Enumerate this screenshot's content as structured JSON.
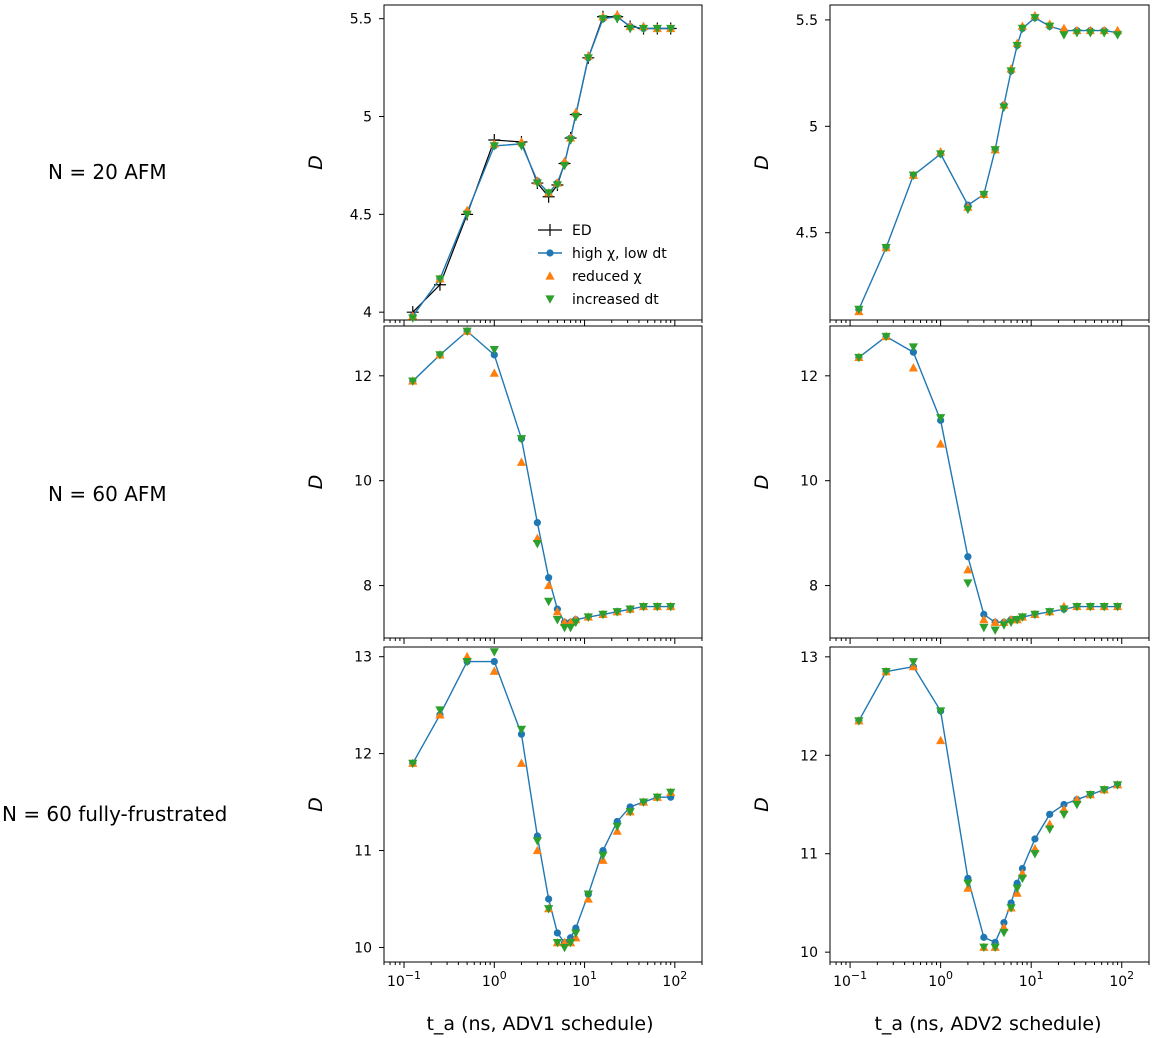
{
  "figure": {
    "row_labels": [
      "N = 20 AFM",
      "N = 60 AFM",
      "N = 60 fully-frustrated"
    ],
    "y_axis_label": "D",
    "column_xlabels": [
      "t_a (ns, ADV1 schedule)",
      "t_a (ns, ADV2 schedule)"
    ],
    "x_tick_labels": [
      "10^-1",
      "10^0",
      "10^1",
      "10^2"
    ]
  },
  "legend": {
    "placement": "lower-right of top-left panel",
    "entries": [
      {
        "key": "ed",
        "label": "ED"
      },
      {
        "key": "high",
        "label": "high χ, low dt"
      },
      {
        "key": "reduced",
        "label": "reduced χ"
      },
      {
        "key": "increased",
        "label": "increased dt"
      }
    ]
  },
  "colors": {
    "ed": "#000000",
    "high": "#1f77b4",
    "reduced": "#ff7f0e",
    "increased": "#2ca02c"
  },
  "chart_data": [
    {
      "type": "line",
      "panel": "row1-col1",
      "xlabel": "",
      "ylabel": "D",
      "xscale": "log",
      "xlim": [
        0.06,
        200
      ],
      "ylim": [
        3.96,
        5.57
      ],
      "yticks": [
        4,
        4.5,
        5,
        5.5
      ],
      "x": [
        0.125,
        0.25,
        0.5,
        1,
        2,
        3,
        4,
        5,
        6,
        7,
        8,
        11,
        16,
        23,
        32,
        45,
        64,
        90
      ],
      "series": [
        {
          "name": "ED",
          "key": "ed",
          "values": [
            4.0,
            4.14,
            4.5,
            4.88,
            4.87,
            4.66,
            4.59,
            4.65,
            4.76,
            4.89,
            5.01,
            5.3,
            5.51,
            5.51,
            5.46,
            5.45,
            5.45,
            5.45
          ]
        },
        {
          "name": "high χ, low dt",
          "key": "high",
          "values": [
            3.98,
            4.17,
            4.51,
            4.85,
            4.86,
            4.67,
            4.61,
            4.66,
            4.76,
            4.89,
            5.01,
            5.3,
            5.5,
            5.51,
            5.46,
            5.45,
            5.45,
            5.45
          ]
        },
        {
          "name": "reduced χ",
          "key": "reduced",
          "values": [
            3.98,
            4.17,
            4.52,
            4.86,
            4.87,
            4.67,
            4.61,
            4.66,
            4.77,
            4.89,
            5.02,
            5.31,
            5.51,
            5.52,
            5.46,
            5.46,
            5.45,
            5.45
          ]
        },
        {
          "name": "increased dt",
          "key": "increased",
          "values": [
            3.97,
            4.17,
            4.5,
            4.85,
            4.85,
            4.66,
            4.61,
            4.65,
            4.75,
            4.88,
            5.0,
            5.3,
            5.5,
            5.5,
            5.45,
            5.45,
            5.45,
            5.45
          ]
        }
      ]
    },
    {
      "type": "line",
      "panel": "row1-col2",
      "xlabel": "",
      "ylabel": "D",
      "xscale": "log",
      "xlim": [
        0.06,
        200
      ],
      "ylim": [
        4.09,
        5.57
      ],
      "yticks": [
        4.5,
        5,
        5.5
      ],
      "x": [
        0.125,
        0.25,
        0.5,
        1,
        2,
        3,
        4,
        5,
        6,
        7,
        8,
        11,
        16,
        23,
        32,
        45,
        64,
        90
      ],
      "series": [
        {
          "name": "high χ, low dt",
          "key": "high",
          "values": [
            4.14,
            4.43,
            4.77,
            4.87,
            4.63,
            4.68,
            4.89,
            5.1,
            5.26,
            5.38,
            5.46,
            5.51,
            5.47,
            5.45,
            5.45,
            5.45,
            5.45,
            5.44
          ]
        },
        {
          "name": "reduced χ",
          "key": "reduced",
          "values": [
            4.13,
            4.43,
            4.77,
            4.88,
            4.62,
            4.68,
            4.89,
            5.1,
            5.27,
            5.39,
            5.47,
            5.52,
            5.48,
            5.46,
            5.45,
            5.45,
            5.45,
            5.45
          ]
        },
        {
          "name": "increased dt",
          "key": "increased",
          "values": [
            4.14,
            4.43,
            4.77,
            4.87,
            4.61,
            4.68,
            4.89,
            5.09,
            5.26,
            5.38,
            5.46,
            5.51,
            5.47,
            5.43,
            5.44,
            5.44,
            5.44,
            5.43
          ]
        }
      ]
    },
    {
      "type": "line",
      "panel": "row2-col1",
      "xlabel": "",
      "ylabel": "D",
      "xscale": "log",
      "xlim": [
        0.06,
        200
      ],
      "ylim": [
        7.0,
        12.95
      ],
      "yticks": [
        8,
        10,
        12
      ],
      "x": [
        0.125,
        0.25,
        0.5,
        1,
        2,
        3,
        4,
        5,
        6,
        7,
        8,
        11,
        16,
        23,
        32,
        45,
        64,
        90
      ],
      "series": [
        {
          "name": "high χ, low dt",
          "key": "high",
          "values": [
            11.9,
            12.4,
            12.85,
            12.4,
            10.8,
            9.2,
            8.15,
            7.55,
            7.3,
            7.3,
            7.35,
            7.4,
            7.45,
            7.5,
            7.55,
            7.6,
            7.6,
            7.6
          ]
        },
        {
          "name": "reduced χ",
          "key": "reduced",
          "values": [
            11.9,
            12.4,
            12.85,
            12.05,
            10.35,
            8.9,
            8.0,
            7.5,
            7.3,
            7.3,
            7.35,
            7.4,
            7.45,
            7.5,
            7.55,
            7.6,
            7.6,
            7.6
          ]
        },
        {
          "name": "increased dt",
          "key": "increased",
          "values": [
            11.9,
            12.4,
            12.85,
            12.5,
            10.8,
            8.8,
            7.7,
            7.35,
            7.2,
            7.2,
            7.3,
            7.4,
            7.45,
            7.5,
            7.55,
            7.6,
            7.6,
            7.6
          ]
        }
      ]
    },
    {
      "type": "line",
      "panel": "row2-col2",
      "xlabel": "",
      "ylabel": "D",
      "xscale": "log",
      "xlim": [
        0.06,
        200
      ],
      "ylim": [
        7.0,
        12.95
      ],
      "yticks": [
        8,
        10,
        12
      ],
      "x": [
        0.125,
        0.25,
        0.5,
        1,
        2,
        3,
        4,
        5,
        6,
        7,
        8,
        11,
        16,
        23,
        32,
        45,
        64,
        90
      ],
      "series": [
        {
          "name": "high χ, low dt",
          "key": "high",
          "values": [
            12.35,
            12.75,
            12.45,
            11.15,
            8.55,
            7.45,
            7.3,
            7.3,
            7.35,
            7.35,
            7.4,
            7.45,
            7.5,
            7.55,
            7.6,
            7.6,
            7.6,
            7.6
          ]
        },
        {
          "name": "reduced χ",
          "key": "reduced",
          "values": [
            12.35,
            12.75,
            12.15,
            10.7,
            8.3,
            7.35,
            7.3,
            7.3,
            7.35,
            7.35,
            7.4,
            7.45,
            7.5,
            7.6,
            7.6,
            7.6,
            7.6,
            7.6
          ]
        },
        {
          "name": "increased dt",
          "key": "increased",
          "values": [
            12.35,
            12.75,
            12.55,
            11.2,
            8.05,
            7.2,
            7.15,
            7.25,
            7.3,
            7.35,
            7.4,
            7.45,
            7.5,
            7.55,
            7.6,
            7.6,
            7.6,
            7.6
          ]
        }
      ]
    },
    {
      "type": "line",
      "panel": "row3-col1",
      "xlabel": "t_a (ns, ADV1 schedule)",
      "ylabel": "D",
      "xscale": "log",
      "xlim": [
        0.06,
        200
      ],
      "ylim": [
        9.85,
        13.1
      ],
      "yticks": [
        10,
        11,
        12,
        13
      ],
      "x": [
        0.125,
        0.25,
        0.5,
        1,
        2,
        3,
        4,
        5,
        6,
        7,
        8,
        11,
        16,
        23,
        32,
        45,
        64,
        90
      ],
      "series": [
        {
          "name": "high χ, low dt",
          "key": "high",
          "values": [
            11.9,
            12.4,
            12.95,
            12.95,
            12.2,
            11.15,
            10.5,
            10.15,
            10.05,
            10.1,
            10.2,
            10.55,
            11.0,
            11.3,
            11.45,
            11.5,
            11.55,
            11.55
          ]
        },
        {
          "name": "reduced χ",
          "key": "reduced",
          "values": [
            11.9,
            12.4,
            13.0,
            12.85,
            11.9,
            11.0,
            10.4,
            10.05,
            10.05,
            10.05,
            10.1,
            10.5,
            10.9,
            11.2,
            11.4,
            11.5,
            11.55,
            11.6
          ]
        },
        {
          "name": "increased dt",
          "key": "increased",
          "values": [
            11.9,
            12.45,
            12.95,
            13.05,
            12.25,
            11.1,
            10.4,
            10.05,
            10.0,
            10.05,
            10.15,
            10.55,
            10.95,
            11.25,
            11.4,
            11.5,
            11.55,
            11.6
          ]
        }
      ]
    },
    {
      "type": "line",
      "panel": "row3-col2",
      "xlabel": "t_a (ns, ADV2 schedule)",
      "ylabel": "D",
      "xscale": "log",
      "xlim": [
        0.06,
        200
      ],
      "ylim": [
        9.9,
        13.1
      ],
      "yticks": [
        10,
        11,
        12,
        13
      ],
      "x": [
        0.125,
        0.25,
        0.5,
        1,
        2,
        3,
        4,
        5,
        6,
        7,
        8,
        11,
        16,
        23,
        32,
        45,
        64,
        90
      ],
      "series": [
        {
          "name": "high χ, low dt",
          "key": "high",
          "values": [
            12.35,
            12.85,
            12.9,
            12.45,
            10.75,
            10.15,
            10.1,
            10.3,
            10.5,
            10.7,
            10.85,
            11.15,
            11.4,
            11.5,
            11.55,
            11.6,
            11.65,
            11.7
          ]
        },
        {
          "name": "reduced χ",
          "key": "reduced",
          "values": [
            12.35,
            12.85,
            12.9,
            12.15,
            10.65,
            10.05,
            10.05,
            10.25,
            10.45,
            10.6,
            10.8,
            11.05,
            11.3,
            11.45,
            11.55,
            11.6,
            11.65,
            11.7
          ]
        },
        {
          "name": "increased dt",
          "key": "increased",
          "values": [
            12.35,
            12.85,
            12.95,
            12.45,
            10.7,
            10.05,
            10.05,
            10.2,
            10.45,
            10.65,
            10.75,
            11.0,
            11.25,
            11.4,
            11.5,
            11.6,
            11.65,
            11.7
          ]
        }
      ]
    }
  ]
}
